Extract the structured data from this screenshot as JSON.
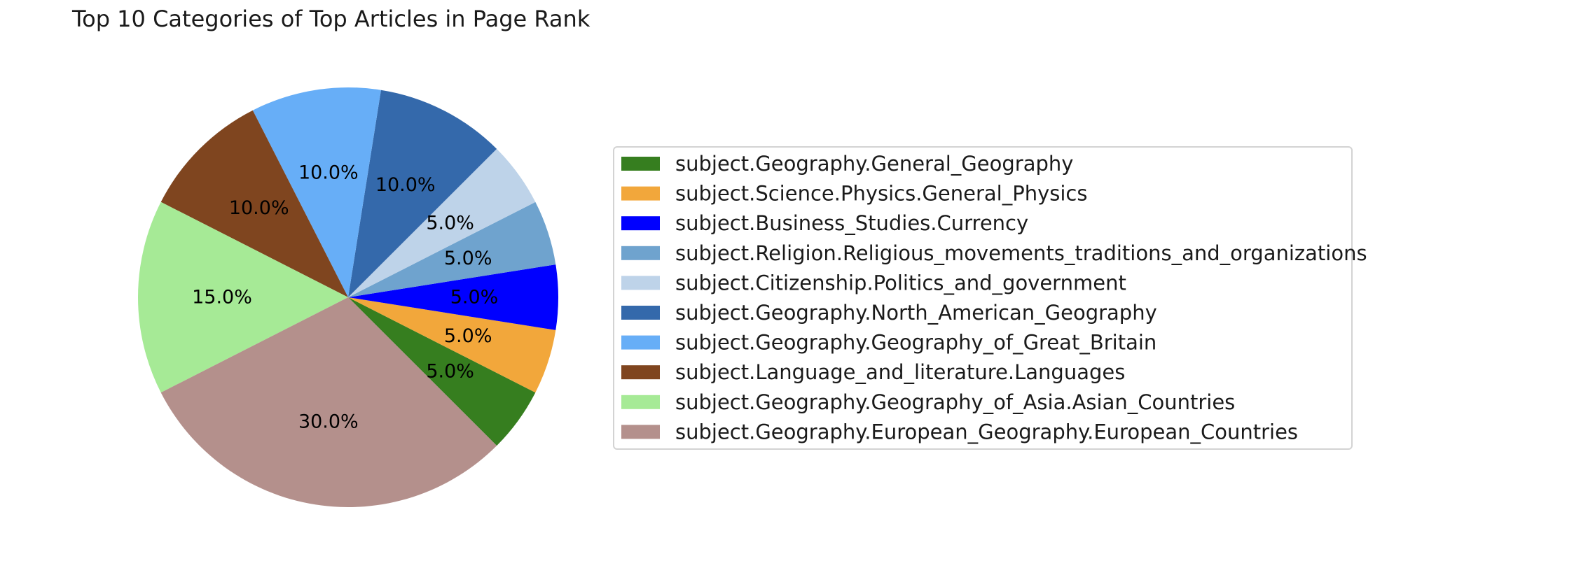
{
  "chart_data": {
    "type": "pie",
    "title": "Top 10 Categories of Top Articles in Page Rank",
    "autopct_format": "%.1f%%",
    "start_angle_deg": -45,
    "direction": "counterclockwise",
    "legend_position": "right",
    "slices": [
      {
        "label": "subject.Geography.General_Geography",
        "value": 5.0,
        "color": "#367e1f"
      },
      {
        "label": "subject.Science.Physics.General_Physics",
        "value": 5.0,
        "color": "#f2a73b"
      },
      {
        "label": "subject.Business_Studies.Currency",
        "value": 5.0,
        "color": "#0000ff"
      },
      {
        "label": "subject.Religion.Religious_movements_traditions_and_organizations",
        "value": 5.0,
        "color": "#6fa3ce"
      },
      {
        "label": "subject.Citizenship.Politics_and_government",
        "value": 5.0,
        "color": "#bed3e9"
      },
      {
        "label": "subject.Geography.North_American_Geography",
        "value": 10.0,
        "color": "#3469ab"
      },
      {
        "label": "subject.Geography.Geography_of_Great_Britain",
        "value": 10.0,
        "color": "#67aef7"
      },
      {
        "label": "subject.Language_and_literature.Languages",
        "value": 10.0,
        "color": "#7f451f"
      },
      {
        "label": "subject.Geography.Geography_of_Asia.Asian_Countries",
        "value": 15.0,
        "color": "#a6ea96"
      },
      {
        "label": "subject.Geography.European_Geography.European_Countries",
        "value": 30.0,
        "color": "#b4908c"
      }
    ]
  }
}
